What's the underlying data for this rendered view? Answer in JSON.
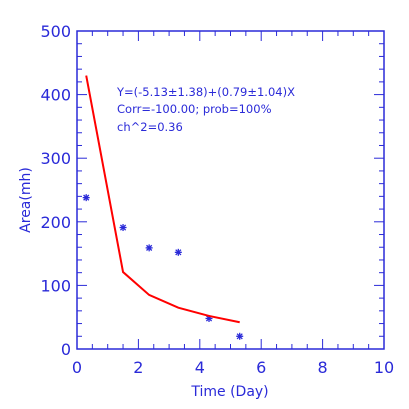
{
  "chart_data": {
    "type": "scatter",
    "title": "",
    "xlabel": "Time (Day)",
    "ylabel": "Area(mh)",
    "xlim": [
      0,
      10
    ],
    "ylim": [
      0,
      500
    ],
    "xticks": [
      0,
      2,
      4,
      6,
      8,
      10
    ],
    "yticks": [
      0,
      100,
      200,
      300,
      400,
      500
    ],
    "grid": false,
    "series": [
      {
        "kind": "scatter",
        "marker": "asterisk",
        "color": "#2a2ad8",
        "x": [
          0.3,
          1.5,
          2.35,
          3.3,
          4.3,
          5.3
        ],
        "y": [
          238,
          191,
          159,
          152,
          48,
          20
        ]
      },
      {
        "kind": "line",
        "color": "#ff0000",
        "x": [
          0.3,
          1.5,
          2.35,
          3.3,
          4.3,
          5.3
        ],
        "y": [
          430,
          121,
          85,
          65,
          52,
          42
        ]
      }
    ],
    "annotations": [
      "Y=(-5.13±1.38)+(0.79±1.04)X",
      "Corr=-100.00;  prob=100%",
      "ch^2=0.36"
    ]
  },
  "colors": {
    "axis": "#2a2ad8",
    "fit_line": "#ff0000",
    "points": "#2a2ad8"
  }
}
